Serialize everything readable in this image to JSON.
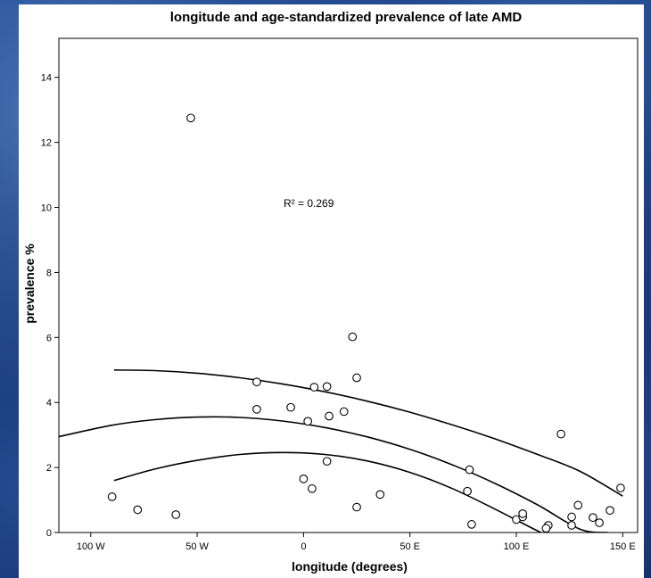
{
  "chart_data": {
    "type": "scatter",
    "title": "longitude and age-standardized prevalence of late AMD",
    "xlabel": "longitude (degrees)",
    "ylabel": "prevalence %",
    "xlim": [
      -115,
      157
    ],
    "ylim": [
      0,
      15.2
    ],
    "x_ticks": [
      {
        "value": -100,
        "label": "100 W"
      },
      {
        "value": -50,
        "label": "50 W"
      },
      {
        "value": 0,
        "label": "0"
      },
      {
        "value": 50,
        "label": "50 E"
      },
      {
        "value": 100,
        "label": "100 E"
      },
      {
        "value": 150,
        "label": "150 E"
      }
    ],
    "y_ticks": [
      {
        "value": 0,
        "label": "0"
      },
      {
        "value": 2,
        "label": "2"
      },
      {
        "value": 4,
        "label": "4"
      },
      {
        "value": 6,
        "label": "6"
      },
      {
        "value": 8,
        "label": "8"
      },
      {
        "value": 10,
        "label": "10"
      },
      {
        "value": 12,
        "label": "12"
      },
      {
        "value": 14,
        "label": "14"
      }
    ],
    "annotation": "R² = 0.269",
    "points": [
      {
        "x": -53,
        "y": 12.75
      },
      {
        "x": 23,
        "y": 6.02
      },
      {
        "x": -22,
        "y": 4.63
      },
      {
        "x": 25,
        "y": 4.76
      },
      {
        "x": 5,
        "y": 4.47
      },
      {
        "x": 11,
        "y": 4.49
      },
      {
        "x": -22,
        "y": 3.79
      },
      {
        "x": -6,
        "y": 3.85
      },
      {
        "x": 19,
        "y": 3.72
      },
      {
        "x": 2,
        "y": 3.42
      },
      {
        "x": 12,
        "y": 3.58
      },
      {
        "x": 11,
        "y": 2.19
      },
      {
        "x": 0,
        "y": 1.65
      },
      {
        "x": 4,
        "y": 1.35
      },
      {
        "x": 36,
        "y": 1.17
      },
      {
        "x": 25,
        "y": 0.78
      },
      {
        "x": -90,
        "y": 1.1
      },
      {
        "x": -78,
        "y": 0.7
      },
      {
        "x": -60,
        "y": 0.55
      },
      {
        "x": 78,
        "y": 1.93
      },
      {
        "x": 77,
        "y": 1.27
      },
      {
        "x": 79,
        "y": 0.25
      },
      {
        "x": 100,
        "y": 0.4
      },
      {
        "x": 103,
        "y": 0.48
      },
      {
        "x": 103,
        "y": 0.58
      },
      {
        "x": 115,
        "y": 0.22
      },
      {
        "x": 114,
        "y": 0.13
      },
      {
        "x": 121,
        "y": 3.03
      },
      {
        "x": 126,
        "y": 0.48
      },
      {
        "x": 126,
        "y": 0.22
      },
      {
        "x": 129,
        "y": 0.84
      },
      {
        "x": 136,
        "y": 0.46
      },
      {
        "x": 139,
        "y": 0.3
      },
      {
        "x": 144,
        "y": 0.68
      },
      {
        "x": 149,
        "y": 1.37
      }
    ],
    "fit_lines": [
      {
        "name": "upper-confidence-band",
        "x": [
          -89,
          -70,
          -50,
          -30,
          -10,
          10,
          30,
          50,
          70,
          90,
          110,
          130,
          150
        ],
        "y": [
          5.0,
          4.98,
          4.9,
          4.76,
          4.57,
          4.33,
          4.04,
          3.7,
          3.31,
          2.88,
          2.4,
          1.88,
          1.12
        ]
      },
      {
        "name": "fitted-curve",
        "x": [
          -115,
          -90,
          -70,
          -50,
          -30,
          -10,
          10,
          30,
          50,
          70,
          90,
          110,
          130,
          143
        ],
        "y": [
          2.95,
          3.3,
          3.47,
          3.55,
          3.54,
          3.43,
          3.23,
          2.94,
          2.56,
          2.08,
          1.51,
          0.85,
          0.1,
          0.0
        ]
      },
      {
        "name": "lower-confidence-band",
        "x": [
          -89,
          -70,
          -50,
          -30,
          -10,
          10,
          30,
          50,
          70,
          90,
          110,
          113
        ],
        "y": [
          1.6,
          1.95,
          2.22,
          2.4,
          2.46,
          2.4,
          2.2,
          1.85,
          1.35,
          0.72,
          0.05,
          0.0
        ]
      }
    ],
    "grid": false,
    "legend": "none"
  }
}
